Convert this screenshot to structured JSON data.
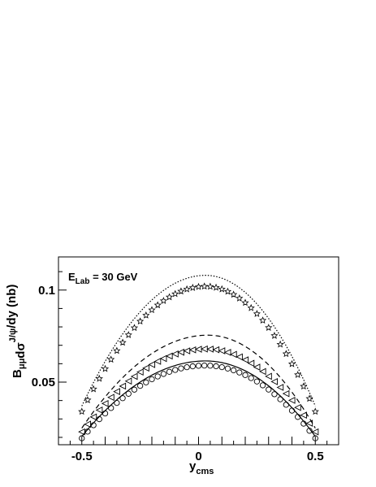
{
  "chart_data": {
    "type": "line",
    "annotation": {
      "main": "E",
      "sub": "Lab",
      "rest": " = 30 GeV"
    },
    "xlabel": {
      "main": "y",
      "sub": "cms"
    },
    "ylabel": "BμμdσJ/ψ/dy (nb)",
    "ylabel_parts": [
      {
        "t": "B",
        "s": "main"
      },
      {
        "t": "μμ",
        "s": "sub"
      },
      {
        "t": "dσ",
        "s": "main"
      },
      {
        "t": "J/ψ",
        "s": "sup"
      },
      {
        "t": "/dy (nb)",
        "s": "main"
      }
    ],
    "xlim": [
      -0.6,
      0.6
    ],
    "ylim": [
      0.016,
      0.118
    ],
    "x_ticks": [
      -0.5,
      0,
      0.5
    ],
    "x_tick_labels": [
      "-0.5",
      "0",
      "0.5"
    ],
    "y_ticks": [
      0.05,
      0.1
    ],
    "y_tick_labels": [
      "0.05",
      "0.1"
    ],
    "grid": false,
    "legend": "none",
    "series": [
      {
        "style": "dotted",
        "shape": "curve",
        "edge": 0.037,
        "peak": 0.108,
        "peak_x": 0.03
      },
      {
        "style": "markers",
        "shape": "star",
        "edge": 0.034,
        "peak": 0.102,
        "peak_x": 0.03
      },
      {
        "style": "dashed",
        "shape": "curve",
        "edge": 0.025,
        "peak": 0.0755,
        "peak_x": 0.04
      },
      {
        "style": "markers",
        "shape": "triangle-left",
        "edge": 0.023,
        "peak": 0.068,
        "peak_x": 0.03
      },
      {
        "style": "solid",
        "shape": "curve",
        "edge": 0.0205,
        "peak": 0.0615,
        "peak_x": 0.03
      },
      {
        "style": "markers",
        "shape": "circle",
        "edge": 0.0195,
        "peak": 0.059,
        "peak_x": 0.03
      }
    ]
  }
}
